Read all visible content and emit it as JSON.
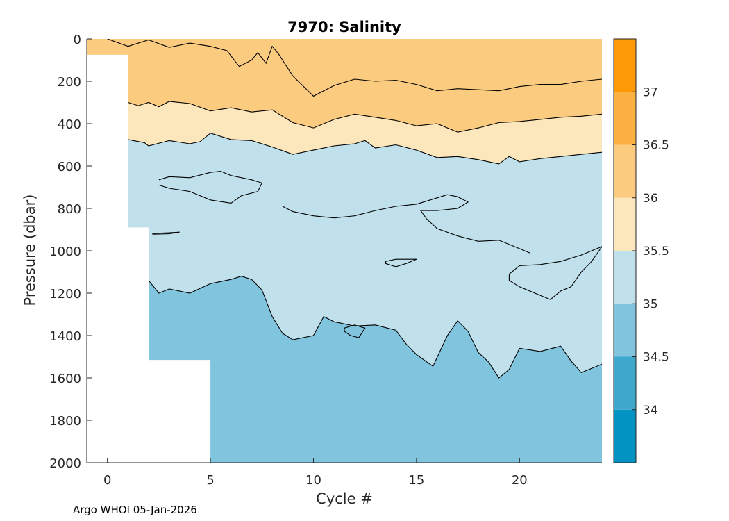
{
  "chart_data": {
    "type": "contour",
    "title": "7970:  Salinity",
    "xlabel": "Cycle #",
    "ylabel": "Pressure (dbar)",
    "xlim": [
      -1,
      24
    ],
    "ylim": [
      2000,
      0
    ],
    "xticks": [
      0,
      5,
      10,
      15,
      20
    ],
    "yticks": [
      0,
      200,
      400,
      600,
      800,
      1000,
      1200,
      1400,
      1600,
      1800,
      2000
    ],
    "colorbar": {
      "range": [
        33.5,
        37.5
      ],
      "ticks": [
        34,
        34.5,
        35,
        35.5,
        36,
        36.5,
        37
      ],
      "levels": [
        {
          "from": 33.5,
          "to": 34.0,
          "color": "#0393c2"
        },
        {
          "from": 34.0,
          "to": 34.5,
          "color": "#40a8cd"
        },
        {
          "from": 34.5,
          "to": 35.0,
          "color": "#80c4de"
        },
        {
          "from": 35.0,
          "to": 35.5,
          "color": "#c0e1ec"
        },
        {
          "from": 35.5,
          "to": 36.0,
          "color": "#fce6bc"
        },
        {
          "from": 36.0,
          "to": 36.5,
          "color": "#fbcb7f"
        },
        {
          "from": 36.5,
          "to": 37.0,
          "color": "#fbb141"
        },
        {
          "from": 37.0,
          "to": 37.5,
          "color": "#fb9a06"
        }
      ]
    },
    "profile_max_depth": [
      {
        "cycle": 0,
        "max_pressure": 75
      },
      {
        "cycle": 1,
        "max_pressure": 890
      },
      {
        "cycle": 2,
        "max_pressure": 1515
      },
      {
        "cycle": 5,
        "max_pressure": 2000
      }
    ],
    "contours": [
      {
        "level": 36.0,
        "points": [
          [
            0,
            0
          ],
          [
            1,
            35
          ],
          [
            2,
            5
          ],
          [
            3,
            40
          ],
          [
            4,
            20
          ],
          [
            5,
            35
          ],
          [
            5.8,
            55
          ],
          [
            6.4,
            130
          ],
          [
            7,
            100
          ],
          [
            7.3,
            65
          ],
          [
            7.7,
            115
          ],
          [
            8,
            35
          ],
          [
            8.3,
            70
          ],
          [
            9,
            175
          ],
          [
            10,
            270
          ],
          [
            11,
            220
          ],
          [
            12,
            190
          ],
          [
            13,
            200
          ],
          [
            14,
            195
          ],
          [
            15,
            215
          ],
          [
            16,
            245
          ],
          [
            17,
            235
          ],
          [
            18,
            240
          ],
          [
            19,
            245
          ],
          [
            20,
            225
          ],
          [
            21,
            215
          ],
          [
            22,
            215
          ],
          [
            23,
            200
          ],
          [
            24,
            190
          ]
        ]
      },
      {
        "level": 35.5,
        "points": [
          [
            1,
            300
          ],
          [
            1.5,
            315
          ],
          [
            2,
            300
          ],
          [
            2.5,
            320
          ],
          [
            3,
            295
          ],
          [
            4,
            305
          ],
          [
            5,
            340
          ],
          [
            6,
            325
          ],
          [
            7,
            345
          ],
          [
            8,
            335
          ],
          [
            9,
            395
          ],
          [
            10,
            420
          ],
          [
            11,
            380
          ],
          [
            12,
            355
          ],
          [
            13,
            370
          ],
          [
            14,
            385
          ],
          [
            15,
            410
          ],
          [
            16,
            400
          ],
          [
            17,
            440
          ],
          [
            18,
            420
          ],
          [
            19,
            395
          ],
          [
            20,
            390
          ],
          [
            21,
            380
          ],
          [
            22,
            370
          ],
          [
            23,
            365
          ],
          [
            24,
            355
          ]
        ]
      },
      {
        "level": 35.0,
        "points": [
          [
            1,
            475
          ],
          [
            1.8,
            490
          ],
          [
            2,
            505
          ],
          [
            3,
            480
          ],
          [
            4,
            495
          ],
          [
            4.5,
            485
          ],
          [
            5,
            445
          ],
          [
            6,
            475
          ],
          [
            7,
            480
          ],
          [
            8,
            510
          ],
          [
            9,
            545
          ],
          [
            10,
            525
          ],
          [
            11,
            505
          ],
          [
            12,
            495
          ],
          [
            12.5,
            480
          ],
          [
            13,
            515
          ],
          [
            14,
            500
          ],
          [
            15,
            525
          ],
          [
            16,
            560
          ],
          [
            17,
            555
          ],
          [
            18,
            570
          ],
          [
            19,
            590
          ],
          [
            19.5,
            555
          ],
          [
            20,
            580
          ],
          [
            21,
            565
          ],
          [
            22,
            555
          ],
          [
            23,
            545
          ],
          [
            24,
            535
          ]
        ]
      },
      {
        "level": 34.5,
        "points": [
          [
            2,
            1140
          ],
          [
            2.5,
            1200
          ],
          [
            3,
            1180
          ],
          [
            4,
            1200
          ],
          [
            5,
            1155
          ],
          [
            6,
            1135
          ],
          [
            6.5,
            1120
          ],
          [
            7,
            1135
          ],
          [
            7.5,
            1185
          ],
          [
            8,
            1310
          ],
          [
            8.5,
            1390
          ],
          [
            9,
            1420
          ],
          [
            10,
            1400
          ],
          [
            10.5,
            1310
          ],
          [
            11,
            1335
          ],
          [
            12,
            1355
          ],
          [
            13,
            1350
          ],
          [
            14,
            1375
          ],
          [
            14.5,
            1440
          ],
          [
            15,
            1490
          ],
          [
            15.8,
            1545
          ],
          [
            16.5,
            1400
          ],
          [
            17,
            1330
          ],
          [
            17.5,
            1380
          ],
          [
            18,
            1480
          ],
          [
            18.5,
            1525
          ],
          [
            19,
            1600
          ],
          [
            19.5,
            1560
          ],
          [
            20,
            1460
          ],
          [
            21,
            1475
          ],
          [
            22,
            1450
          ],
          [
            22.5,
            1520
          ],
          [
            23,
            1575
          ],
          [
            24,
            1535
          ]
        ]
      },
      {
        "level": 35.0,
        "points": [
          [
            2.5,
            665
          ],
          [
            3,
            650
          ],
          [
            4,
            655
          ],
          [
            5,
            630
          ],
          [
            5.5,
            625
          ],
          [
            6,
            645
          ],
          [
            7,
            665
          ],
          [
            7.5,
            680
          ],
          [
            7.3,
            720
          ],
          [
            6.5,
            740
          ],
          [
            6,
            775
          ],
          [
            5,
            760
          ],
          [
            4,
            720
          ],
          [
            3,
            705
          ],
          [
            2.5,
            690
          ]
        ]
      },
      {
        "level": 35.0,
        "points": [
          [
            8.5,
            790
          ],
          [
            9,
            815
          ],
          [
            10,
            835
          ],
          [
            11,
            845
          ],
          [
            12,
            835
          ],
          [
            13,
            810
          ],
          [
            14,
            790
          ],
          [
            15,
            780
          ],
          [
            16,
            750
          ],
          [
            16.5,
            735
          ],
          [
            17,
            745
          ],
          [
            17.5,
            770
          ],
          [
            17,
            800
          ],
          [
            16,
            810
          ],
          [
            15.2,
            810
          ],
          [
            15.5,
            850
          ],
          [
            16,
            895
          ],
          [
            17,
            930
          ],
          [
            18,
            955
          ],
          [
            19,
            950
          ],
          [
            20,
            990
          ],
          [
            20.5,
            1010
          ]
        ]
      },
      {
        "level": 35.0,
        "points": [
          [
            13.5,
            1050
          ],
          [
            14,
            1040
          ],
          [
            15,
            1040
          ],
          [
            14.5,
            1060
          ],
          [
            14,
            1075
          ],
          [
            13.5,
            1060
          ]
        ]
      },
      {
        "level": 35.0,
        "points": [
          [
            19.5,
            1110
          ],
          [
            20,
            1070
          ],
          [
            21,
            1065
          ],
          [
            22,
            1050
          ],
          [
            23,
            1020
          ],
          [
            24,
            980
          ],
          [
            23.5,
            1050
          ],
          [
            23,
            1100
          ],
          [
            22.5,
            1170
          ],
          [
            22,
            1190
          ],
          [
            21.5,
            1230
          ],
          [
            21,
            1210
          ],
          [
            20,
            1170
          ],
          [
            19.5,
            1140
          ]
        ]
      },
      {
        "level": 35.0,
        "points": [
          [
            11.5,
            1365
          ],
          [
            12,
            1350
          ],
          [
            12.5,
            1365
          ],
          [
            12.2,
            1410
          ],
          [
            11.8,
            1400
          ],
          [
            11.5,
            1380
          ]
        ]
      },
      {
        "level": 35.0,
        "points": [
          [
            2.2,
            918
          ],
          [
            3,
            915
          ],
          [
            3.5,
            912
          ],
          [
            3,
            920
          ],
          [
            2.2,
            922
          ]
        ]
      }
    ]
  }
}
